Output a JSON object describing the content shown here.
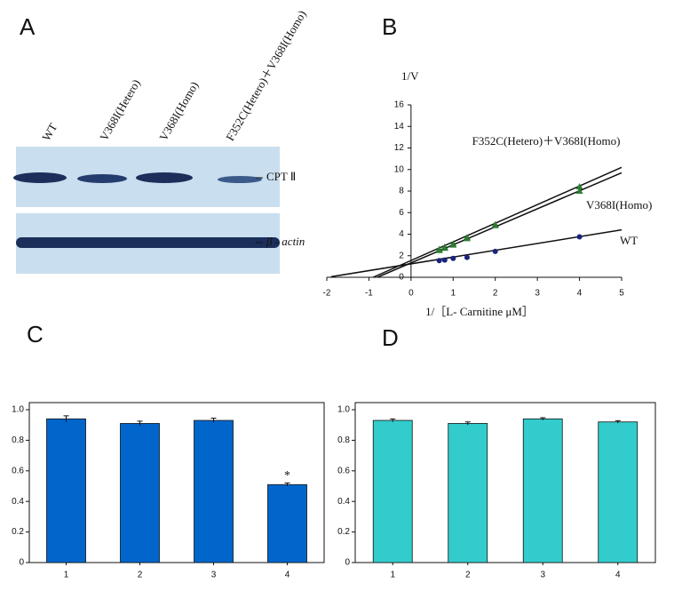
{
  "blot": {
    "panel_label": "A",
    "lanes": [
      "WT",
      "V368I(Hetero)",
      "V368I(Homo)",
      "F352C(Hetero)＋V368I(Homo)"
    ],
    "bands": [
      "CPT Ⅱ",
      "β - actin"
    ]
  },
  "chart_data": [
    {
      "type": "line",
      "panel_label": "B",
      "y_label": "1/V",
      "x_label": "1/［L- Carnitine μM］",
      "xlim": [
        -2,
        5
      ],
      "xticks": [
        -2,
        -1,
        0,
        1,
        2,
        3,
        4,
        5
      ],
      "ylim": [
        0,
        16
      ],
      "yticks": [
        0,
        2,
        4,
        6,
        8,
        10,
        12,
        14,
        16
      ],
      "series": [
        {
          "name": "F352C(Hetero)＋V368I(Homo)",
          "color": "#2e7d32",
          "marker": "triangle",
          "x": [
            0.67,
            0.8,
            1,
            1.33,
            2,
            4
          ],
          "values": [
            2.6,
            2.8,
            3.1,
            3.7,
            4.9,
            8.4
          ],
          "fit": {
            "x": [
              -0.9,
              5
            ],
            "values": [
              0,
              10.2
            ]
          }
        },
        {
          "name": "V368I(Homo)",
          "color": "#2e7d32",
          "marker": "triangle",
          "x": [
            0.67,
            0.8,
            1,
            1.33,
            2,
            4
          ],
          "values": [
            2.5,
            2.7,
            3.0,
            3.6,
            4.8,
            8.0
          ],
          "fit": {
            "x": [
              -0.8,
              5
            ],
            "values": [
              0,
              9.7
            ]
          }
        },
        {
          "name": "WT",
          "color": "#1a237e",
          "marker": "circle",
          "x": [
            0.67,
            0.8,
            1,
            1.33,
            2,
            4
          ],
          "values": [
            1.55,
            1.6,
            1.75,
            1.85,
            2.4,
            3.75
          ],
          "fit": {
            "x": [
              -1.9,
              5
            ],
            "values": [
              0.05,
              4.4
            ]
          }
        }
      ]
    },
    {
      "type": "bar",
      "panel_label": "C",
      "color": "#0066cc",
      "categories": [
        "1",
        "2",
        "3",
        "4"
      ],
      "values": [
        0.94,
        0.91,
        0.93,
        0.51
      ],
      "errors": [
        0.02,
        0.015,
        0.015,
        0.01
      ],
      "annotation": {
        "text": "*",
        "category": "4"
      },
      "ylim": [
        0,
        1
      ],
      "yticks": [
        0,
        {
          "value": 0.2,
          "label": "0.2"
        },
        {
          "value": 0.4,
          "label": "0.4"
        },
        {
          "value": 0.6,
          "label": "0.6"
        },
        {
          "value": 0.8,
          "label": "0.8"
        },
        {
          "value": 1,
          "label": "1.0"
        }
      ]
    },
    {
      "type": "bar",
      "panel_label": "D",
      "color": "#33cccc",
      "categories": [
        "1",
        "2",
        "3",
        "4"
      ],
      "values": [
        0.93,
        0.91,
        0.94,
        0.92
      ],
      "errors": [
        0.01,
        0.01,
        0.008,
        0.008
      ],
      "ylim": [
        0,
        1
      ],
      "yticks": [
        0,
        {
          "value": 0.2,
          "label": "0.2"
        },
        {
          "value": 0.4,
          "label": "0.4"
        },
        {
          "value": 0.6,
          "label": "0.6"
        },
        {
          "value": 0.8,
          "label": "0.8"
        },
        {
          "value": 1,
          "label": "1.0"
        }
      ]
    }
  ]
}
